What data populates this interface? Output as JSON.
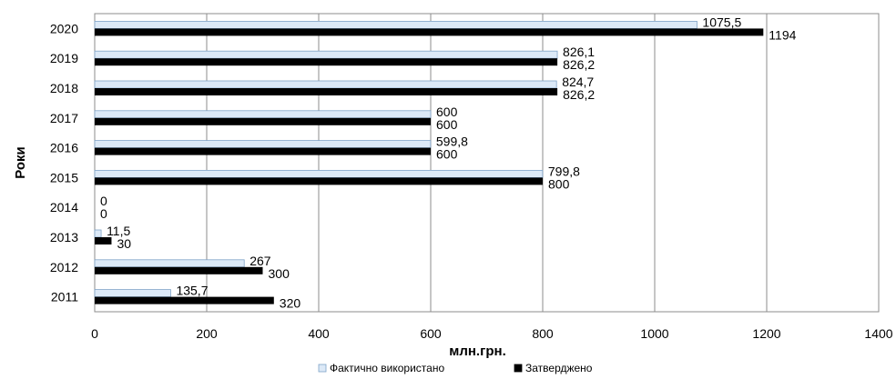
{
  "chart_data": {
    "type": "bar",
    "orientation": "horizontal",
    "categories": [
      "2020",
      "2019",
      "2018",
      "2017",
      "2016",
      "2015",
      "2014",
      "2013",
      "2012",
      "2011"
    ],
    "series": [
      {
        "name": "Фактично використано",
        "values": [
          1075.5,
          826.1,
          824.7,
          600,
          599.8,
          799.8,
          0,
          11.5,
          267,
          135.7
        ],
        "labels": [
          "1075,5",
          "826,1",
          "824,7",
          "600",
          "599,8",
          "799,8",
          "0",
          "11,5",
          "267",
          "135,7"
        ],
        "color": "#dce9f7"
      },
      {
        "name": "Затверджено",
        "values": [
          1194,
          826.2,
          826.2,
          600,
          600,
          800,
          0,
          30,
          300,
          320
        ],
        "labels": [
          "1194",
          "826,2",
          "826,2",
          "600",
          "600",
          "800",
          "0",
          "30",
          "300",
          "320"
        ],
        "color": "#000000"
      }
    ],
    "xlabel": "млн.грн.",
    "ylabel": "Роки",
    "xlim": [
      0,
      1400
    ],
    "xticks": [
      0,
      200,
      400,
      600,
      800,
      1000,
      1200,
      1400
    ],
    "xtick_labels": [
      "0",
      "200",
      "400",
      "600",
      "800",
      "1000",
      "1200",
      "1400"
    ],
    "grid": true,
    "legend": "bottom"
  }
}
